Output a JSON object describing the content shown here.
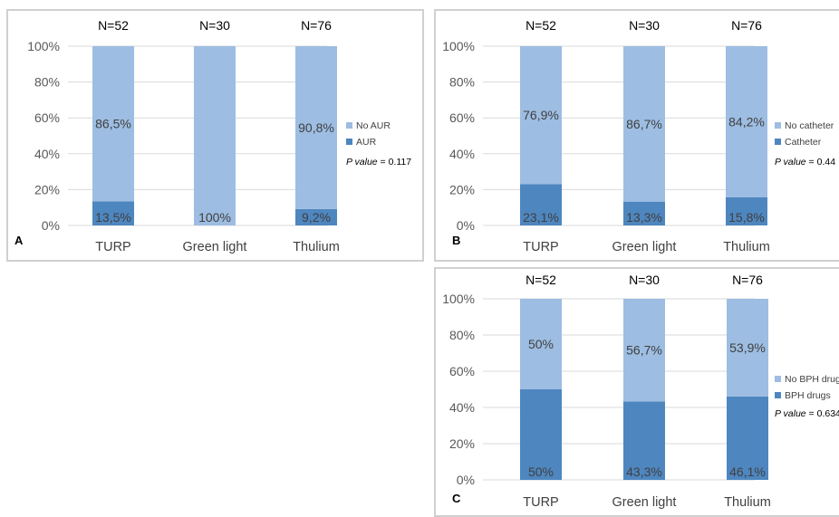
{
  "chart_data": [
    {
      "type": "bar",
      "stacked": true,
      "percent": true,
      "panel_letter": "A",
      "categories": [
        "TURP",
        "Green light",
        "Thulium"
      ],
      "n_labels": [
        "N=52",
        "N=30",
        "N=76"
      ],
      "ylim": [
        0,
        100
      ],
      "yticks": [
        "0%",
        "20%",
        "40%",
        "60%",
        "80%",
        "100%"
      ],
      "grid": true,
      "legend_position": "right",
      "series": [
        {
          "name": "AUR",
          "values": [
            13.5,
            0,
            9.2
          ],
          "labels": [
            "13,5%",
            "",
            "9,2%"
          ],
          "color": "#4e86bf"
        },
        {
          "name": "No AUR",
          "values": [
            86.5,
            100,
            90.8
          ],
          "labels": [
            "86,5%",
            "100%",
            "90,8%"
          ],
          "color": "#9dbde2"
        }
      ],
      "pvalue_label": "P value",
      "pvalue": "= 0.117"
    },
    {
      "type": "bar",
      "stacked": true,
      "percent": true,
      "panel_letter": "B",
      "categories": [
        "TURP",
        "Green light",
        "Thulium"
      ],
      "n_labels": [
        "N=52",
        "N=30",
        "N=76"
      ],
      "ylim": [
        0,
        100
      ],
      "yticks": [
        "0%",
        "20%",
        "40%",
        "60%",
        "80%",
        "100%"
      ],
      "grid": true,
      "legend_position": "right",
      "series": [
        {
          "name": "Catheter",
          "values": [
            23.1,
            13.3,
            15.8
          ],
          "labels": [
            "23,1%",
            "13,3%",
            "15,8%"
          ],
          "color": "#4e86bf"
        },
        {
          "name": "No catheter",
          "values": [
            76.9,
            86.7,
            84.2
          ],
          "labels": [
            "76,9%",
            "86,7%",
            "84,2%"
          ],
          "color": "#9dbde2"
        }
      ],
      "pvalue_label": "P value",
      "pvalue": "= 0.44"
    },
    {
      "type": "bar",
      "stacked": true,
      "percent": true,
      "panel_letter": "C",
      "categories": [
        "TURP",
        "Green light",
        "Thulium"
      ],
      "n_labels": [
        "N=52",
        "N=30",
        "N=76"
      ],
      "ylim": [
        0,
        100
      ],
      "yticks": [
        "0%",
        "20%",
        "40%",
        "60%",
        "80%",
        "100%"
      ],
      "grid": true,
      "legend_position": "right",
      "series": [
        {
          "name": "BPH drugs",
          "values": [
            50,
            43.3,
            46.1
          ],
          "labels": [
            "50%",
            "43,3%",
            "46,1%"
          ],
          "color": "#4e86bf"
        },
        {
          "name": "No BPH drugs",
          "values": [
            50,
            56.7,
            53.9
          ],
          "labels": [
            "50%",
            "56,7%",
            "53,9%"
          ],
          "color": "#9dbde2"
        }
      ],
      "pvalue_label": "P value",
      "pvalue": "= 0.634"
    }
  ]
}
